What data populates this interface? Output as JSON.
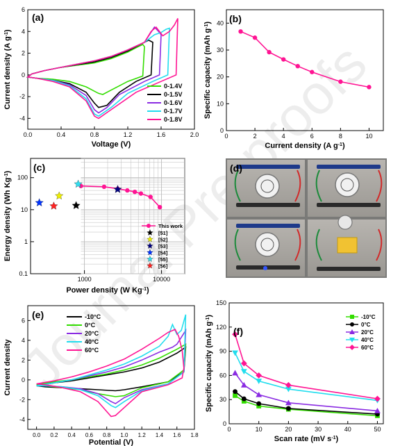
{
  "watermark": "Journal Pre-proofs",
  "colors": {
    "black": "#000000",
    "green": "#33dd00",
    "purple": "#8a2be2",
    "cyan": "#22ddee",
    "magenta": "#ff1493"
  },
  "panels": {
    "a": {
      "tag": "(a)",
      "xlabel": "Voltage (V)",
      "ylabel": "Current density (A g",
      "ylabel_sup": "-1",
      "ylabel_end": ")",
      "xticks": [
        0.0,
        0.4,
        0.8,
        1.2,
        1.6,
        2.0
      ],
      "yticks": [
        -4,
        -2,
        0,
        2,
        4,
        6
      ],
      "xlim": [
        0,
        2.0
      ],
      "ylim": [
        -5,
        6
      ],
      "legend": [
        "0-1.4V",
        "0-1.5V",
        "0-1.6V",
        "0-1.7V",
        "0-1.8V"
      ]
    },
    "b": {
      "tag": "(b)",
      "xlabel": "Current density (A g",
      "xlabel_sup": "-1",
      "xlabel_end": ")",
      "ylabel": "Specific capacity (mAh g",
      "ylabel_sup": "-1",
      "ylabel_end": ")",
      "xticks": [
        0,
        2,
        4,
        6,
        8,
        10
      ],
      "yticks": [
        0,
        10,
        20,
        30,
        40
      ],
      "xlim": [
        0,
        11
      ],
      "ylim": [
        0,
        45
      ]
    },
    "c": {
      "tag": "(c)",
      "xlabel": "Power density (W Kg",
      "xlabel_sup": "-1",
      "xlabel_end": ")",
      "ylabel": "Energy density (Wh Kg",
      "ylabel_sup": "-1",
      "ylabel_end": ")",
      "xtick_labels": [
        "1000",
        "10000"
      ],
      "ytick_labels": [
        "0.1",
        "1",
        "10",
        "100"
      ],
      "legend": [
        "This work",
        "[51]",
        "[52]",
        "[53]",
        "[54]",
        "[55]",
        "[56]"
      ]
    },
    "d": {
      "tag": "(d)"
    },
    "e": {
      "tag": "(e)",
      "xlabel": "Potential (V)",
      "ylabel": "Current density",
      "xticks": [
        0.0,
        0.2,
        0.4,
        0.6,
        0.8,
        1.0,
        1.2,
        1.4,
        1.6,
        1.8
      ],
      "yticks": [
        -4,
        -2,
        0,
        2,
        4,
        6
      ],
      "xlim": [
        -0.1,
        1.8
      ],
      "ylim": [
        -5,
        7.5
      ],
      "legend": [
        "-10°C",
        "0°C",
        "20°C",
        "40°C",
        "60°C"
      ]
    },
    "f": {
      "tag": "(f)",
      "xlabel": "Scan rate (mV s",
      "xlabel_sup": "-1",
      "xlabel_end": ")",
      "ylabel": "Specific capacity (mAh g",
      "ylabel_sup": "-1",
      "ylabel_end": ")",
      "xticks": [
        0,
        10,
        20,
        30,
        40,
        50
      ],
      "yticks": [
        0,
        30,
        60,
        90,
        120,
        150
      ],
      "xlim": [
        0,
        52
      ],
      "ylim": [
        0,
        150
      ],
      "legend": [
        "-10°C",
        "0°C",
        "20°C",
        "40°C",
        "60°C"
      ]
    }
  },
  "chart_data": [
    {
      "panel": "a",
      "type": "line",
      "xlabel": "Voltage (V)",
      "ylabel": "Current density (A g-1)",
      "xlim": [
        0,
        2.0
      ],
      "ylim": [
        -5,
        6
      ],
      "series": [
        {
          "name": "0-1.4V",
          "color": "#33dd00",
          "x": [
            0.0,
            0.05,
            0.2,
            0.4,
            0.6,
            0.8,
            1.0,
            1.2,
            1.3,
            1.38,
            1.4,
            1.38,
            1.2,
            1.0,
            0.9,
            0.85,
            0.8,
            0.7,
            0.5,
            0.3,
            0.1,
            0.0
          ],
          "y": [
            -0.2,
            0.1,
            0.4,
            0.7,
            0.9,
            1.1,
            1.5,
            2.1,
            2.5,
            2.8,
            2.6,
            -0.1,
            -0.6,
            -1.4,
            -1.8,
            -1.7,
            -1.5,
            -1.1,
            -0.6,
            -0.4,
            -0.3,
            -0.2
          ]
        },
        {
          "name": "0-1.5V",
          "color": "#000000",
          "x": [
            0.0,
            0.05,
            0.2,
            0.4,
            0.6,
            0.8,
            1.0,
            1.2,
            1.35,
            1.45,
            1.5,
            1.48,
            1.3,
            1.1,
            0.95,
            0.85,
            0.8,
            0.7,
            0.5,
            0.3,
            0.1,
            0.0
          ],
          "y": [
            -0.2,
            0.1,
            0.4,
            0.7,
            0.95,
            1.2,
            1.6,
            2.2,
            2.8,
            3.2,
            3.0,
            0.0,
            -0.6,
            -1.6,
            -2.8,
            -3.0,
            -2.6,
            -1.6,
            -0.8,
            -0.5,
            -0.3,
            -0.2
          ]
        },
        {
          "name": "0-1.6V",
          "color": "#8a2be2",
          "x": [
            0.0,
            0.05,
            0.2,
            0.4,
            0.6,
            0.8,
            1.0,
            1.2,
            1.4,
            1.52,
            1.57,
            1.6,
            1.58,
            1.4,
            1.1,
            0.95,
            0.85,
            0.8,
            0.7,
            0.5,
            0.3,
            0.1,
            0.0
          ],
          "y": [
            -0.2,
            0.1,
            0.4,
            0.7,
            1.0,
            1.3,
            1.7,
            2.3,
            3.0,
            4.4,
            4.0,
            3.7,
            0.0,
            -0.6,
            -1.8,
            -3.0,
            -3.5,
            -3.2,
            -1.9,
            -0.9,
            -0.5,
            -0.3,
            -0.2
          ]
        },
        {
          "name": "0-1.7V",
          "color": "#22ddee",
          "x": [
            0.0,
            0.05,
            0.2,
            0.4,
            0.6,
            0.8,
            1.0,
            1.2,
            1.4,
            1.52,
            1.6,
            1.66,
            1.7,
            1.68,
            1.5,
            1.2,
            1.0,
            0.85,
            0.8,
            0.7,
            0.5,
            0.3,
            0.1,
            0.0
          ],
          "y": [
            -0.2,
            0.1,
            0.4,
            0.7,
            1.0,
            1.3,
            1.7,
            2.3,
            3.0,
            3.7,
            3.9,
            4.2,
            4.3,
            0.0,
            -0.6,
            -1.7,
            -3.0,
            -3.8,
            -3.6,
            -2.2,
            -1.0,
            -0.5,
            -0.3,
            -0.2
          ]
        },
        {
          "name": "0-1.8V",
          "color": "#ff1493",
          "x": [
            0.0,
            0.05,
            0.2,
            0.4,
            0.6,
            0.8,
            1.0,
            1.2,
            1.4,
            1.48,
            1.54,
            1.62,
            1.7,
            1.76,
            1.8,
            1.78,
            1.6,
            1.3,
            1.0,
            0.85,
            0.8,
            0.7,
            0.5,
            0.3,
            0.1,
            0.0
          ],
          "y": [
            -0.2,
            0.1,
            0.4,
            0.7,
            1.0,
            1.3,
            1.7,
            2.3,
            3.0,
            4.0,
            4.4,
            3.6,
            4.0,
            4.6,
            5.2,
            0.0,
            -0.6,
            -1.6,
            -3.2,
            -4.0,
            -3.8,
            -2.4,
            -1.1,
            -0.6,
            -0.3,
            -0.2
          ]
        }
      ]
    },
    {
      "panel": "b",
      "type": "line",
      "xlabel": "Current density (A g-1)",
      "ylabel": "Specific capacity (mAh g-1)",
      "xlim": [
        0,
        11
      ],
      "ylim": [
        0,
        45
      ],
      "series": [
        {
          "color": "#ff1493",
          "x": [
            1,
            2,
            3,
            4,
            5,
            6,
            8,
            10
          ],
          "y": [
            36.9,
            34.6,
            29.2,
            26.5,
            24.0,
            21.8,
            18.2,
            16.2
          ]
        }
      ]
    },
    {
      "panel": "c",
      "type": "scatter",
      "xlabel": "Power density (W Kg-1)",
      "ylabel": "Energy density (Wh Kg-1)",
      "xlim": [
        200,
        20000
      ],
      "ylim": [
        0.1,
        400
      ],
      "xscale": "log",
      "yscale": "log",
      "series": [
        {
          "name": "This work",
          "color": "#ff1493",
          "x": [
            900,
            1800,
            2700,
            3600,
            4500,
            5400,
            7200,
            9500
          ],
          "y": [
            55,
            52,
            45,
            40,
            36,
            32,
            25,
            12
          ]
        },
        {
          "name": "[51]",
          "color": "#000000",
          "x": [
            780
          ],
          "y": [
            13.5
          ]
        },
        {
          "name": "[52]",
          "color": "#eeee00",
          "x": [
            470
          ],
          "y": [
            27
          ]
        },
        {
          "name": "[53]",
          "color": "#000080",
          "x": [
            2700
          ],
          "y": [
            43
          ]
        },
        {
          "name": "[54]",
          "color": "#0033ff",
          "x": [
            260
          ],
          "y": [
            16.5
          ]
        },
        {
          "name": "[55]",
          "color": "#33ddee",
          "x": [
            830
          ],
          "y": [
            63
          ]
        },
        {
          "name": "[56]",
          "color": "#ff2222",
          "x": [
            400
          ],
          "y": [
            13
          ]
        }
      ]
    },
    {
      "panel": "e",
      "type": "line",
      "xlabel": "Potential (V)",
      "ylabel": "Current density",
      "xlim": [
        -0.1,
        1.8
      ],
      "ylim": [
        -5,
        7.5
      ],
      "series": [
        {
          "name": "-10°C",
          "color": "#000000",
          "x": [
            0.0,
            0.2,
            0.4,
            0.6,
            0.8,
            1.0,
            1.2,
            1.4,
            1.6,
            1.7,
            1.68,
            1.5,
            1.2,
            1.0,
            0.9,
            0.7,
            0.5,
            0.3,
            0.1,
            0.0
          ],
          "y": [
            -0.6,
            -0.3,
            -0.1,
            0.2,
            0.5,
            0.8,
            1.2,
            1.8,
            2.7,
            3.3,
            0.8,
            -0.2,
            -0.7,
            -1.0,
            -1.1,
            -1.0,
            -0.9,
            -0.8,
            -0.7,
            -0.6
          ]
        },
        {
          "name": "0°C",
          "color": "#33dd00",
          "x": [
            0.0,
            0.2,
            0.4,
            0.6,
            0.8,
            1.0,
            1.2,
            1.4,
            1.6,
            1.7,
            1.68,
            1.5,
            1.2,
            1.0,
            0.9,
            0.7,
            0.5,
            0.3,
            0.1,
            0.0
          ],
          "y": [
            -0.5,
            -0.2,
            0.0,
            0.3,
            0.6,
            1.0,
            1.5,
            2.2,
            3.1,
            3.6,
            1.0,
            -0.2,
            -0.8,
            -1.6,
            -1.7,
            -1.4,
            -1.0,
            -0.8,
            -0.6,
            -0.5
          ]
        },
        {
          "name": "20°C",
          "color": "#8a2be2",
          "x": [
            0.0,
            0.2,
            0.4,
            0.6,
            0.8,
            1.0,
            1.2,
            1.4,
            1.55,
            1.6,
            1.65,
            1.7,
            1.68,
            1.5,
            1.2,
            1.0,
            0.9,
            0.85,
            0.7,
            0.5,
            0.3,
            0.1,
            0.0
          ],
          "y": [
            -0.6,
            -0.3,
            0.0,
            0.4,
            0.8,
            1.3,
            2.0,
            2.8,
            3.3,
            3.6,
            4.3,
            5.0,
            0.8,
            -0.4,
            -1.0,
            -1.8,
            -2.4,
            -2.2,
            -1.4,
            -0.9,
            -0.7,
            -0.6,
            -0.6
          ]
        },
        {
          "name": "40°C",
          "color": "#22ddee",
          "x": [
            0.0,
            0.2,
            0.4,
            0.6,
            0.8,
            1.0,
            1.2,
            1.4,
            1.5,
            1.55,
            1.6,
            1.65,
            1.7,
            1.68,
            1.5,
            1.2,
            1.0,
            0.9,
            0.85,
            0.7,
            0.5,
            0.3,
            0.1,
            0.0
          ],
          "y": [
            -0.6,
            -0.3,
            0.0,
            0.5,
            1.0,
            1.6,
            2.4,
            3.4,
            4.4,
            5.6,
            4.6,
            5.0,
            6.6,
            0.8,
            -0.4,
            -1.1,
            -2.2,
            -2.8,
            -2.6,
            -1.6,
            -1.0,
            -0.7,
            -0.6,
            -0.6
          ]
        },
        {
          "name": "60°C",
          "color": "#ff1493",
          "x": [
            0.0,
            0.2,
            0.4,
            0.6,
            0.8,
            1.0,
            1.2,
            1.4,
            1.5,
            1.58,
            1.62,
            1.66,
            1.68,
            1.66,
            1.5,
            1.2,
            1.0,
            0.9,
            0.85,
            0.7,
            0.5,
            0.3,
            0.1,
            0.0
          ],
          "y": [
            -0.4,
            -0.1,
            0.3,
            0.8,
            1.4,
            2.1,
            3.1,
            4.2,
            4.8,
            5.1,
            4.4,
            3.0,
            1.2,
            0.2,
            -0.5,
            -1.2,
            -2.8,
            -3.6,
            -3.7,
            -2.2,
            -1.2,
            -0.8,
            -0.5,
            -0.4
          ]
        }
      ]
    },
    {
      "panel": "f",
      "type": "line",
      "xlabel": "Scan rate (mV s-1)",
      "ylabel": "Specific capacity (mAh g-1)",
      "xlim": [
        0,
        52
      ],
      "ylim": [
        0,
        150
      ],
      "x": [
        2,
        5,
        10,
        20,
        50
      ],
      "series": [
        {
          "name": "-10°C",
          "color": "#33dd00",
          "marker": "square",
          "values": [
            35,
            28,
            22,
            18,
            10
          ]
        },
        {
          "name": "0°C",
          "color": "#000000",
          "marker": "circle",
          "values": [
            40,
            31,
            25,
            19,
            12
          ]
        },
        {
          "name": "20°C",
          "color": "#8a2be2",
          "marker": "triangle",
          "values": [
            63,
            48,
            36,
            26,
            16
          ]
        },
        {
          "name": "40°C",
          "color": "#22ddee",
          "marker": "tri-down",
          "values": [
            88,
            65,
            53,
            43,
            29
          ]
        },
        {
          "name": "60°C",
          "color": "#ff1493",
          "marker": "diamond",
          "values": [
            111,
            75,
            60,
            48,
            31
          ]
        }
      ]
    }
  ]
}
